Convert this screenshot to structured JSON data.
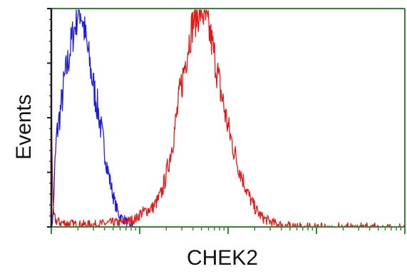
{
  "chart_data": {
    "type": "line",
    "title": "",
    "xlabel": "CHEK2",
    "ylabel": "Events",
    "x_scale": "log",
    "x_decades": 4,
    "ylim": [
      0,
      100
    ],
    "grid": false,
    "legend": "none",
    "colors": {
      "frame": "#2e8b2e",
      "y_axis": "#1a1a1a"
    },
    "series": [
      {
        "color": "#1f1fd6",
        "points": [
          [
            0.0,
            0
          ],
          [
            0.02,
            5
          ],
          [
            0.04,
            28
          ],
          [
            0.06,
            42
          ],
          [
            0.09,
            50
          ],
          [
            0.12,
            58
          ],
          [
            0.15,
            68
          ],
          [
            0.19,
            76
          ],
          [
            0.23,
            86
          ],
          [
            0.27,
            93
          ],
          [
            0.3,
            99
          ],
          [
            0.33,
            100
          ],
          [
            0.36,
            94
          ],
          [
            0.4,
            84
          ],
          [
            0.44,
            74
          ],
          [
            0.48,
            64
          ],
          [
            0.52,
            56
          ],
          [
            0.56,
            46
          ],
          [
            0.6,
            36
          ],
          [
            0.64,
            26
          ],
          [
            0.68,
            18
          ],
          [
            0.72,
            11
          ],
          [
            0.76,
            6
          ],
          [
            0.8,
            4
          ],
          [
            0.84,
            3
          ],
          [
            0.88,
            1
          ],
          [
            0.92,
            0.4
          ],
          [
            0.96,
            0
          ]
        ]
      },
      {
        "color": "#e01a1a",
        "points": [
          [
            0.0,
            60
          ],
          [
            0.02,
            6
          ],
          [
            0.05,
            3
          ],
          [
            0.1,
            2
          ],
          [
            0.2,
            1.5
          ],
          [
            0.3,
            1
          ],
          [
            0.4,
            1
          ],
          [
            0.5,
            1
          ],
          [
            0.6,
            1.5
          ],
          [
            0.7,
            2
          ],
          [
            0.8,
            2
          ],
          [
            0.9,
            3
          ],
          [
            0.97,
            4
          ],
          [
            1.0,
            6
          ],
          [
            1.05,
            7
          ],
          [
            1.1,
            8
          ],
          [
            1.15,
            9
          ],
          [
            1.2,
            12
          ],
          [
            1.25,
            16
          ],
          [
            1.3,
            24
          ],
          [
            1.35,
            34
          ],
          [
            1.4,
            46
          ],
          [
            1.45,
            60
          ],
          [
            1.5,
            72
          ],
          [
            1.55,
            84
          ],
          [
            1.6,
            94
          ],
          [
            1.65,
            98
          ],
          [
            1.7,
            100
          ],
          [
            1.75,
            95
          ],
          [
            1.8,
            88
          ],
          [
            1.85,
            78
          ],
          [
            1.9,
            66
          ],
          [
            1.95,
            56
          ],
          [
            2.0,
            46
          ],
          [
            2.05,
            38
          ],
          [
            2.1,
            30
          ],
          [
            2.15,
            24
          ],
          [
            2.2,
            18
          ],
          [
            2.25,
            13
          ],
          [
            2.3,
            9
          ],
          [
            2.35,
            6
          ],
          [
            2.4,
            4
          ],
          [
            2.45,
            3
          ],
          [
            2.5,
            2
          ],
          [
            2.6,
            1
          ],
          [
            2.7,
            0.5
          ],
          [
            2.8,
            0.3
          ],
          [
            3.0,
            0
          ],
          [
            4.0,
            0
          ]
        ]
      }
    ]
  }
}
